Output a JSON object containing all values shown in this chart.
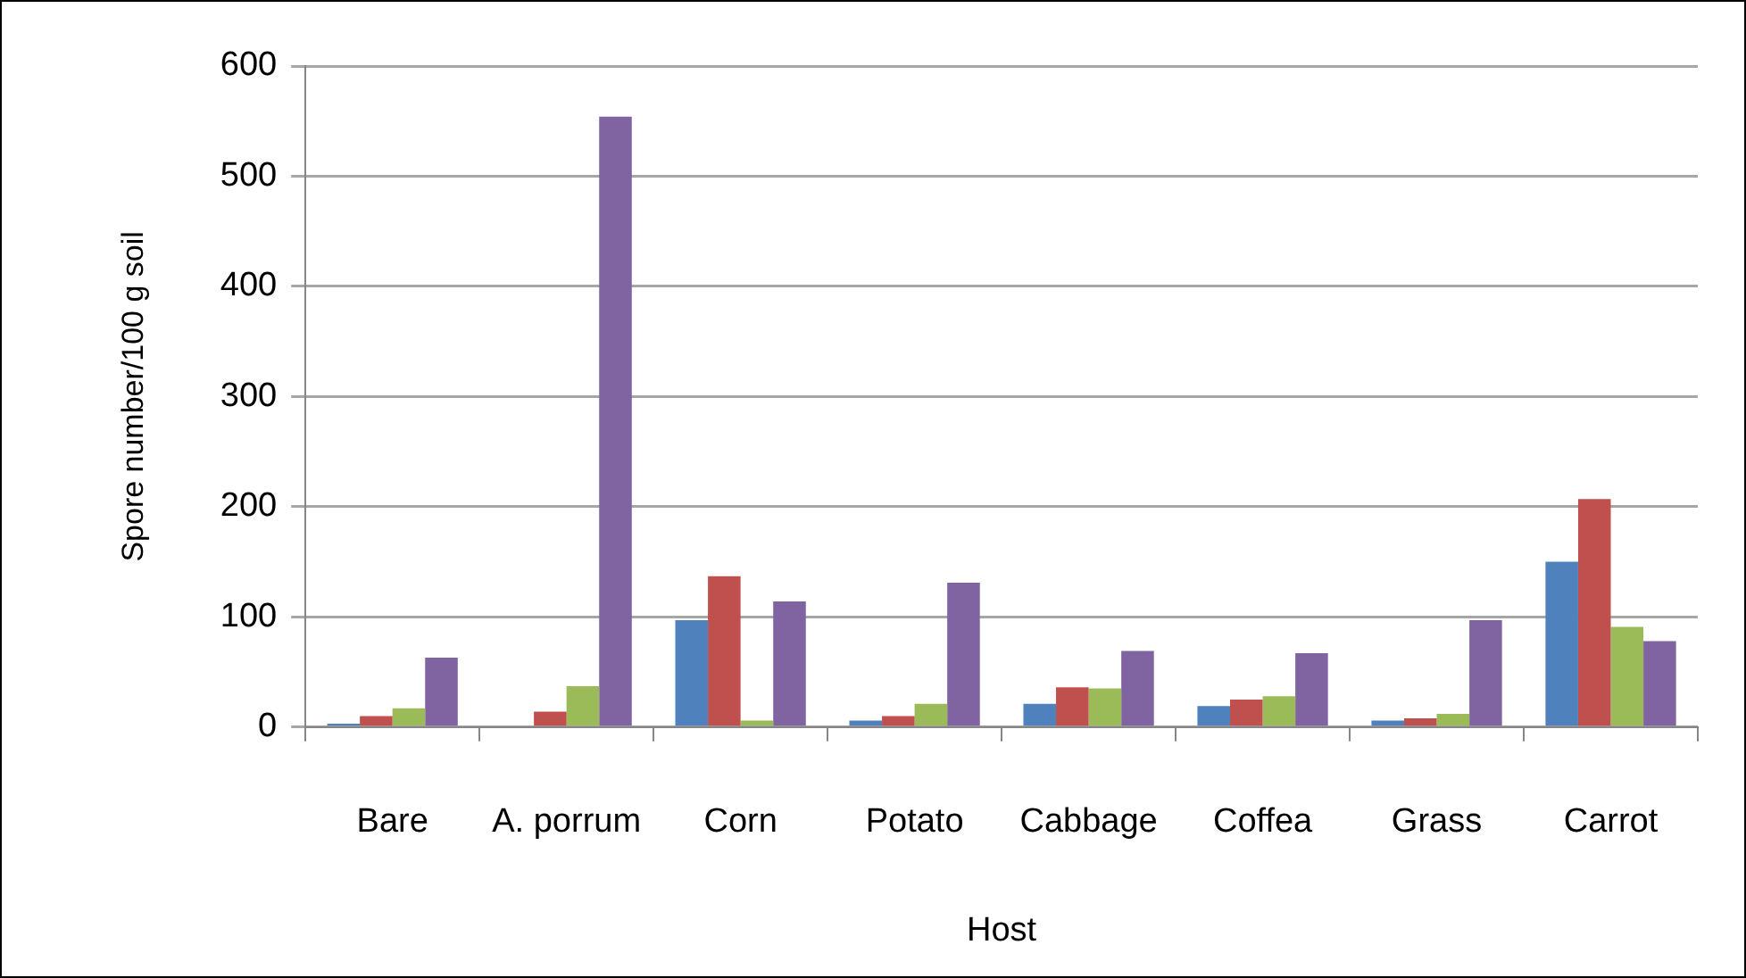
{
  "chart_data": {
    "type": "bar",
    "xlabel": "Host",
    "ylabel": "Spore number/100 g soil",
    "categories": [
      "Bare",
      "A. porrum",
      "Corn",
      "Potato",
      "Cabbage",
      "Coffea",
      "Grass",
      "Carrot"
    ],
    "series": [
      {
        "color": "#4f81bd",
        "values": [
          3,
          0,
          97,
          6,
          21,
          19,
          6,
          150
        ]
      },
      {
        "color": "#c0504d",
        "values": [
          10,
          14,
          137,
          10,
          36,
          25,
          8,
          207
        ]
      },
      {
        "color": "#9bbb59",
        "values": [
          17,
          37,
          6,
          21,
          35,
          28,
          12,
          91
        ]
      },
      {
        "color": "#8064a2",
        "values": [
          63,
          554,
          114,
          131,
          69,
          67,
          97,
          78
        ]
      }
    ],
    "ylim": [
      0,
      600
    ],
    "yticks": [
      0,
      100,
      200,
      300,
      400,
      500,
      600
    ],
    "grid": "y",
    "legend": false
  }
}
